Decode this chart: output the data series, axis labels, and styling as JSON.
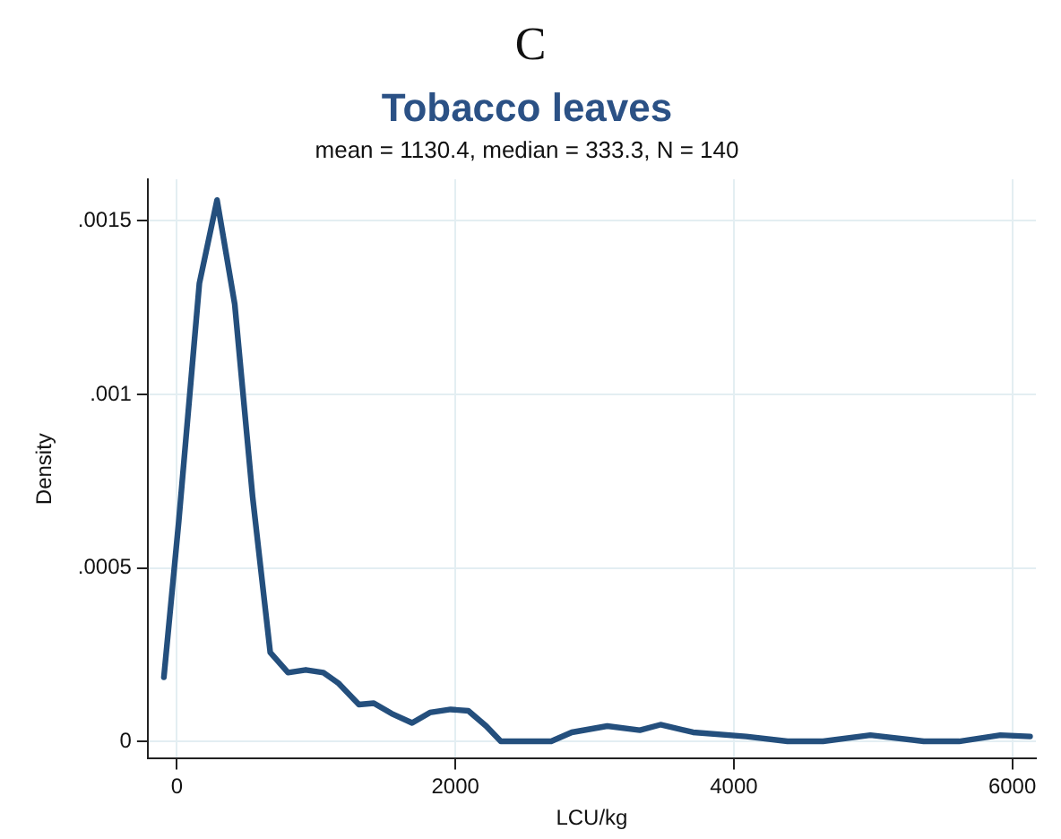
{
  "chart_data": {
    "type": "line",
    "title": "Tobacco leaves",
    "subtitle": "mean = 1130.4, median = 333.3, N = 140",
    "xlabel": "LCU/kg",
    "ylabel": "Density",
    "annotations": [
      "C"
    ],
    "series": [
      {
        "color": "#244f7d",
        "x": [
          -94,
          13,
          161,
          288,
          415,
          543,
          670,
          798,
          925,
          1052,
          1159,
          1307,
          1414,
          1542,
          1689,
          1817,
          1966,
          2093,
          2221,
          2326,
          2688,
          2836,
          3091,
          3325,
          3473,
          3707,
          4089,
          4386,
          4641,
          4981,
          5364,
          5618,
          5915,
          6128
        ],
        "values": [
          0.000185,
          0.000635,
          0.00132,
          0.00156,
          0.00126,
          0.000706,
          0.000256,
          0.000198,
          0.000206,
          0.000198,
          0.000168,
          0.000106,
          0.00011,
          8e-05,
          5.3e-05,
          8.3e-05,
          9.2e-05,
          8.8e-05,
          4.4e-05,
          0,
          0,
          2.6e-05,
          4.4e-05,
          3.2e-05,
          4.8e-05,
          2.6e-05,
          1.4e-05,
          0,
          0,
          1.8e-05,
          0,
          0,
          1.8e-05,
          1.4e-05
        ]
      }
    ],
    "xlim": [
      -210,
      6170
    ],
    "ylim": [
      -5e-05,
      0.00162
    ],
    "xticks": [
      0,
      2000,
      4000,
      6000
    ],
    "yticks": [
      0,
      {
        "value": 0.0005,
        "label": ".0005"
      },
      {
        "value": 0.001,
        "label": ".001"
      },
      {
        "value": 0.0015,
        "label": ".0015"
      }
    ],
    "grid": true,
    "legend": false,
    "line_style": "solid",
    "marker": "none"
  }
}
